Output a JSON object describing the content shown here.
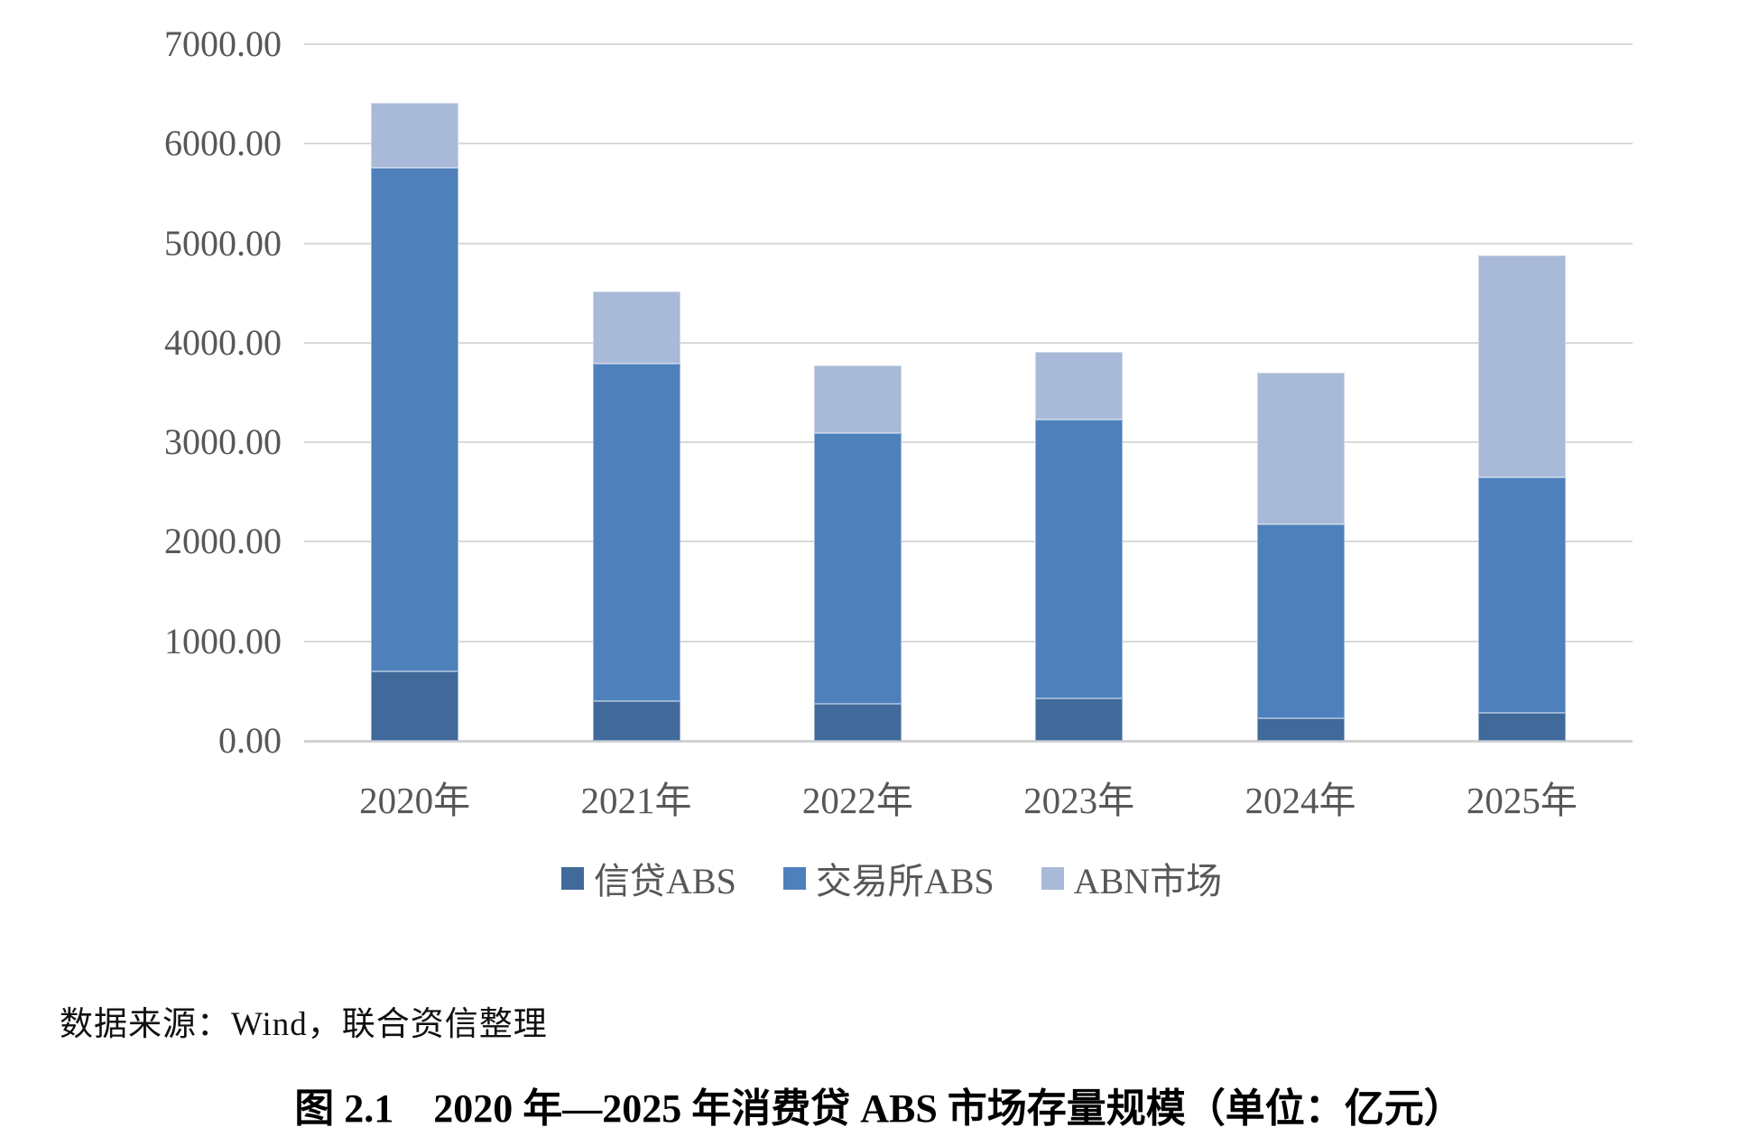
{
  "chart_data": {
    "type": "bar",
    "stacked": true,
    "title": "图 2.1　2020 年—2025 年消费贷 ABS 市场存量规模（单位：亿元）",
    "categories": [
      "2020年",
      "2021年",
      "2022年",
      "2023年",
      "2024年",
      "2025年"
    ],
    "series": [
      {
        "name": "信贷ABS",
        "color": "#416A9B",
        "values": [
          700,
          400,
          370,
          430,
          230,
          280
        ]
      },
      {
        "name": "交易所ABS",
        "color": "#4E80BC",
        "values": [
          5060,
          3390,
          2720,
          2800,
          1950,
          2370
        ]
      },
      {
        "name": "ABN市场",
        "color": "#A9B9D8",
        "values": [
          650,
          730,
          680,
          680,
          1520,
          2230
        ]
      }
    ],
    "totals": [
      6410,
      4520,
      3770,
      3910,
      3700,
      4880
    ],
    "ylim": [
      0,
      7000
    ],
    "ytick_step": 1000,
    "ytick_labels": [
      "0.00",
      "1000.00",
      "2000.00",
      "3000.00",
      "4000.00",
      "5000.00",
      "6000.00",
      "7000.00"
    ],
    "grid": true,
    "legend_position": "bottom",
    "colors": {
      "gridline": "#D9D9D9",
      "axis_text": "#575757"
    }
  },
  "source_note": "数据来源：Wind，联合资信整理",
  "caption": "图 2.1　2020 年—2025 年消费贷 ABS 市场存量规模（单位：亿元）"
}
